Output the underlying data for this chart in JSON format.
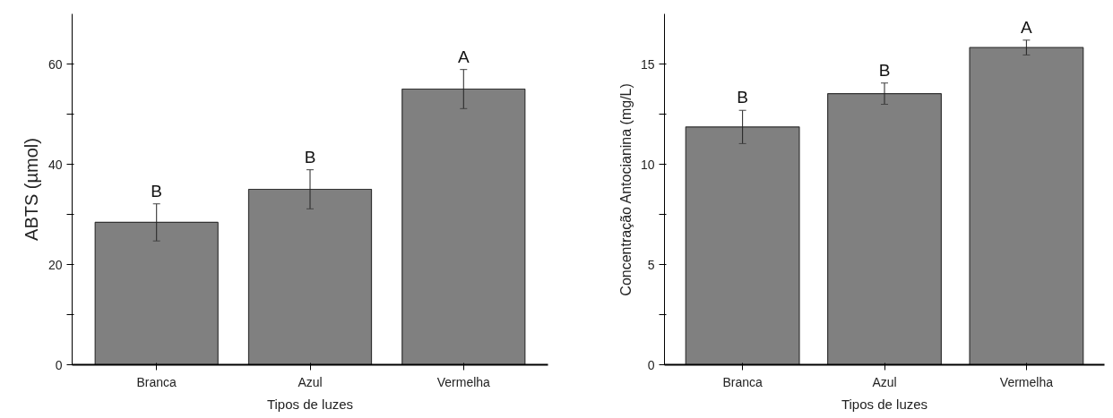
{
  "chart_data": [
    {
      "type": "bar",
      "xlabel": "Tipos de luzes",
      "ylabel": "ABTS (µmol)",
      "categories": [
        "Branca",
        "Azul",
        "Vermelha"
      ],
      "values": [
        28.4,
        35.0,
        55.0
      ],
      "errors": [
        3.7,
        3.9,
        3.9
      ],
      "color": "#808080",
      "ylim": [
        0,
        70
      ],
      "yticks": [
        0,
        {
          "value": 10,
          "label": null
        },
        20,
        {
          "value": 30,
          "label": null
        },
        40,
        {
          "value": 50,
          "label": null
        },
        60
      ],
      "grid": false,
      "annotations": [
        "B",
        "B",
        "A"
      ]
    },
    {
      "type": "bar",
      "xlabel": "Tipos de luzes",
      "ylabel": "Concentração Antocianina (mg/L)",
      "categories": [
        "Branca",
        "Azul",
        "Vermelha"
      ],
      "values": [
        11.86,
        13.52,
        15.82
      ],
      "errors": [
        0.83,
        0.53,
        0.37
      ],
      "color": "#808080",
      "ylim": [
        0,
        17.5
      ],
      "yticks": [
        0,
        {
          "value": 2.5,
          "label": null
        },
        5,
        {
          "value": 7.5,
          "label": null
        },
        10,
        {
          "value": 12.5,
          "label": null
        },
        15
      ],
      "grid": false,
      "annotations": [
        "B",
        "B",
        "A"
      ]
    }
  ]
}
